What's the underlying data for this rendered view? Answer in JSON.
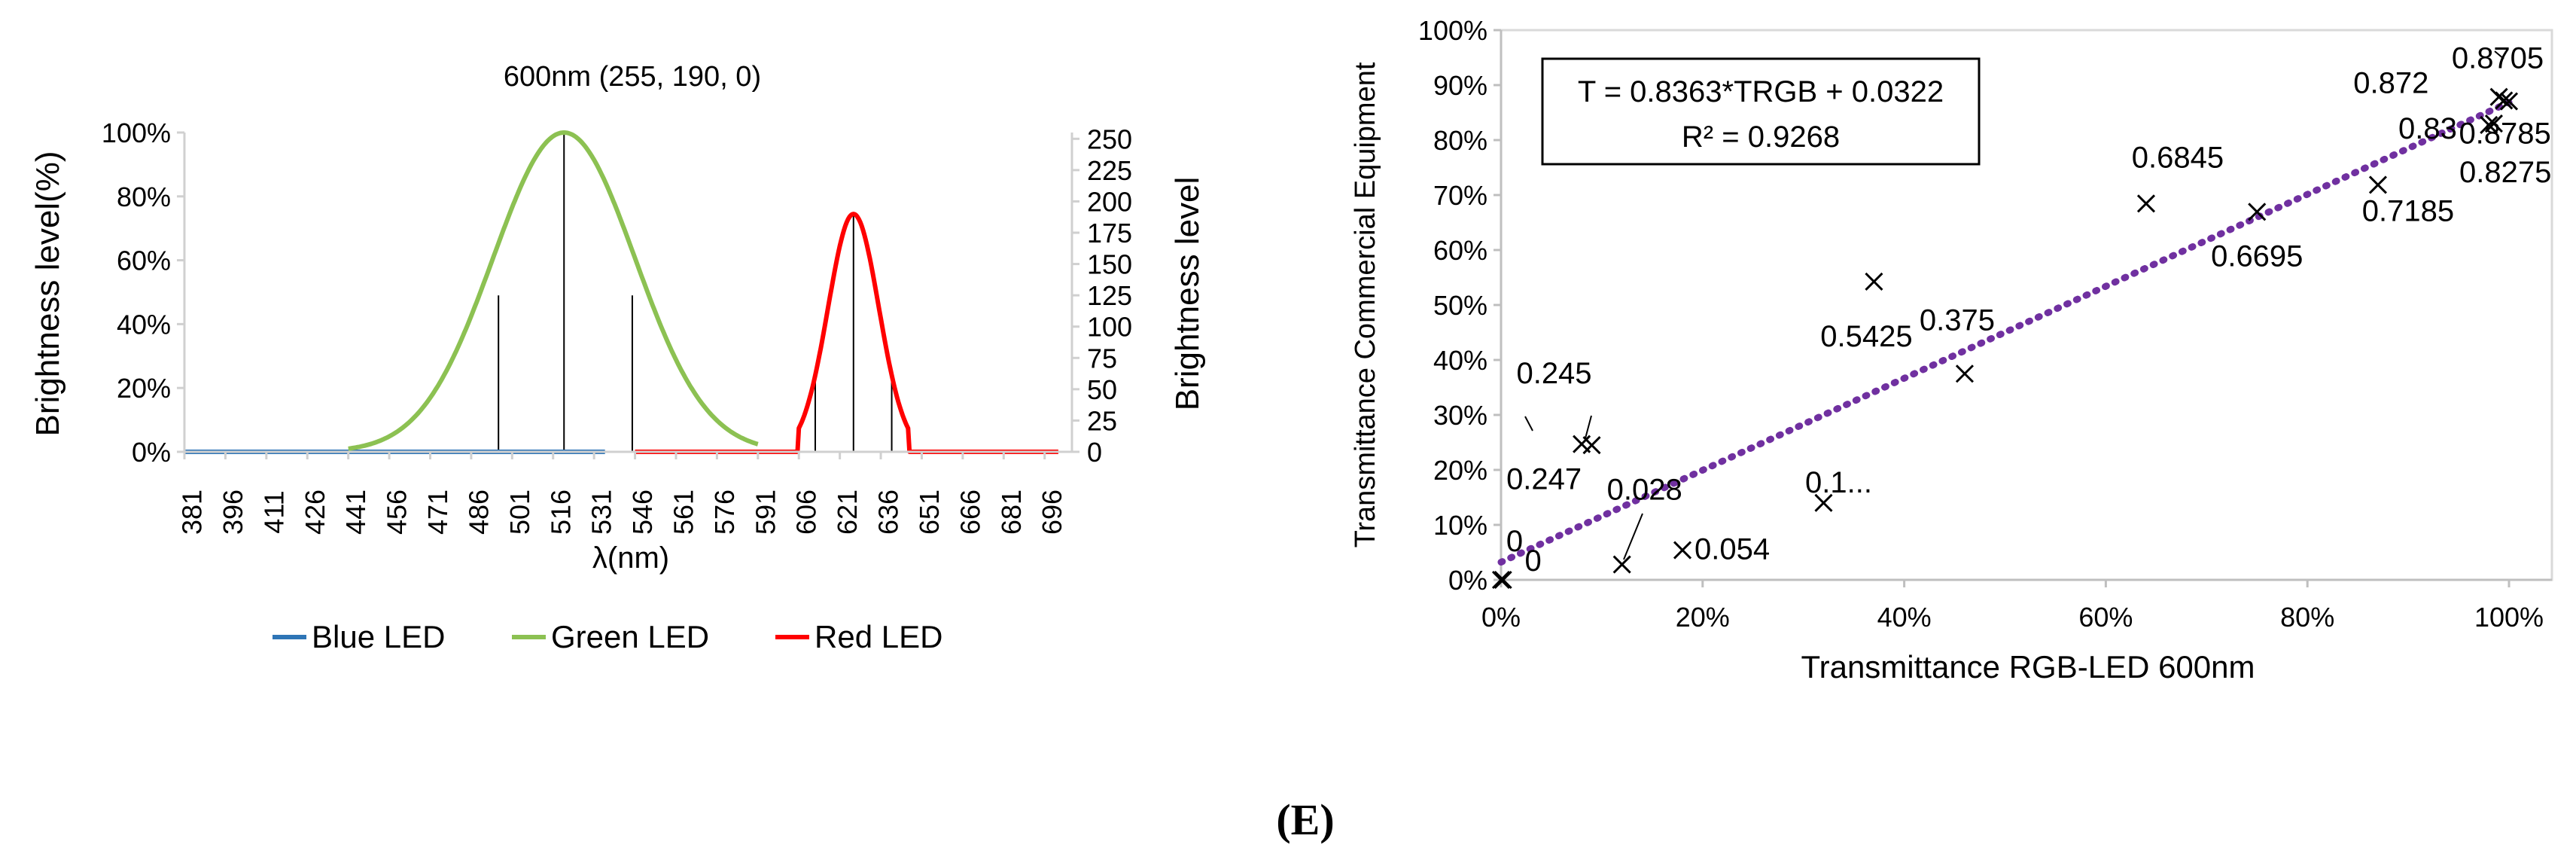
{
  "panel_label": "(E)",
  "chart_data": [
    {
      "type": "line",
      "title": "600nm (255, 190, 0)",
      "xlabel": "λ(nm)",
      "ylabel": "Brightness level(%)",
      "y2label": "Brightness level",
      "xlim": [
        381,
        706
      ],
      "ylim": [
        0,
        1.0
      ],
      "y2lim": [
        0,
        255
      ],
      "x_tick_labels": [
        "381",
        "396",
        "411",
        "426",
        "441",
        "456",
        "471",
        "486",
        "501",
        "516",
        "531",
        "546",
        "561",
        "576",
        "591",
        "606",
        "621",
        "636",
        "651",
        "666",
        "681",
        "696"
      ],
      "y_tick_labels": [
        "0%",
        "20%",
        "40%",
        "60%",
        "80%",
        "100%"
      ],
      "y2_tick_labels": [
        "0",
        "25",
        "50",
        "75",
        "100",
        "125",
        "150",
        "175",
        "200",
        "225",
        "250"
      ],
      "legend": [
        "Blue LED",
        "Green LED",
        "Red LED"
      ],
      "series": [
        {
          "name": "Blue LED",
          "color": "#2e75b6",
          "x_start": 381,
          "x_end": 535,
          "level": 0
        },
        {
          "name": "Green LED",
          "color": "#8cc152",
          "peak_x": 520,
          "peak": 1.0,
          "sigma": 26,
          "x_start": 441,
          "x_end": 591,
          "zero_x_start": 381
        },
        {
          "name": "Red LED",
          "color": "#ff0000",
          "peak_x": 626,
          "peak": 0.745,
          "sigma": 9.3,
          "x_start": 546,
          "x_end": 701
        }
      ],
      "droplines": [
        {
          "x": 496,
          "y": 0.49
        },
        {
          "x": 520,
          "y": 1.0
        },
        {
          "x": 545,
          "y": 0.49
        },
        {
          "x": 612,
          "y": 0.25
        },
        {
          "x": 626,
          "y": 0.745
        },
        {
          "x": 640,
          "y": 0.25
        }
      ]
    },
    {
      "type": "scatter",
      "xlabel": "Transmittance RGB-LED 600nm",
      "ylabel": "Transmittance Commercial Equipment",
      "xlim": [
        0,
        1
      ],
      "ylim": [
        0,
        1
      ],
      "x_tick_labels": [
        "0%",
        "20%",
        "40%",
        "60%",
        "80%",
        "100%"
      ],
      "y_tick_labels": [
        "0%",
        "10%",
        "20%",
        "30%",
        "40%",
        "50%",
        "60%",
        "70%",
        "80%",
        "90%",
        "100%"
      ],
      "equation": "T = 0.8363*TRGB + 0.0322",
      "r_squared": "R² = 0.9268",
      "trendline": {
        "slope": 0.8363,
        "intercept": 0.0322,
        "color": "#7030a0"
      },
      "points": [
        {
          "x": 0.0,
          "y": 0.0,
          "label": "0"
        },
        {
          "x": 0.002,
          "y": 0.0,
          "label": "0"
        },
        {
          "x": 0.08,
          "y": 0.247,
          "label": "0.247"
        },
        {
          "x": 0.09,
          "y": 0.245,
          "label": "0.245"
        },
        {
          "x": 0.12,
          "y": 0.028,
          "label": "0.028"
        },
        {
          "x": 0.18,
          "y": 0.054,
          "label": "0.054"
        },
        {
          "x": 0.32,
          "y": 0.14,
          "label": "0.1..."
        },
        {
          "x": 0.37,
          "y": 0.5425,
          "label": "0.5425"
        },
        {
          "x": 0.46,
          "y": 0.375,
          "label": "0.375"
        },
        {
          "x": 0.64,
          "y": 0.6845,
          "label": "0.6845"
        },
        {
          "x": 0.75,
          "y": 0.6695,
          "label": "0.6695"
        },
        {
          "x": 0.87,
          "y": 0.7185,
          "label": "0.7185"
        },
        {
          "x": 0.98,
          "y": 0.8275,
          "label": "0.8275"
        },
        {
          "x": 0.985,
          "y": 0.83,
          "label": "0.83"
        },
        {
          "x": 0.99,
          "y": 0.8785,
          "label": "0.8785"
        },
        {
          "x": 0.995,
          "y": 0.872,
          "label": "0.872"
        },
        {
          "x": 1.0,
          "y": 0.8705,
          "label": "0.8705"
        }
      ]
    }
  ]
}
